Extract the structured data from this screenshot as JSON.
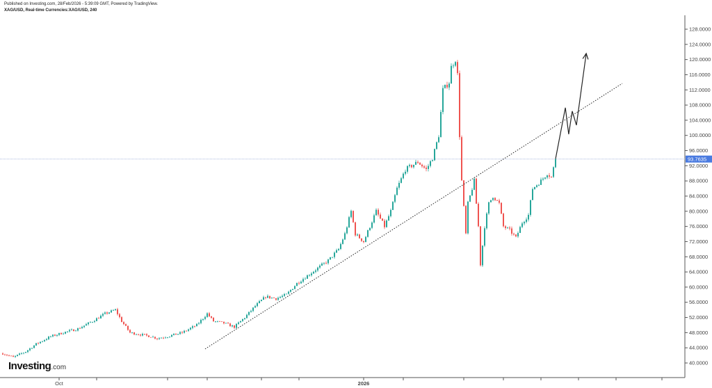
{
  "header": {
    "published": "Published on Investing.com, 28/Feb/2026 - 5:39:09 GMT, Powered by TradingView.",
    "symbol": "XAG/USD, Real-time Currencies:XAG/USD, 240"
  },
  "logo": {
    "main": "Investing",
    "suffix": ".com"
  },
  "chart_data": {
    "type": "candlestick",
    "symbol": "XAG/USD",
    "interval": "240",
    "ylim": [
      36,
      132
    ],
    "y_ticks": [
      "40.0000",
      "44.0000",
      "48.0000",
      "52.0000",
      "56.0000",
      "60.0000",
      "64.0000",
      "68.0000",
      "72.0000",
      "76.0000",
      "80.0000",
      "84.0000",
      "88.0000",
      "92.0000",
      "96.0000",
      "100.0000",
      "104.0000",
      "108.0000",
      "112.0000",
      "116.0000",
      "120.0000",
      "124.0000",
      "128.0000"
    ],
    "x_labels": [
      {
        "label": "Oct",
        "bar": 27
      },
      {
        "label": "2026",
        "bar": 173
      }
    ],
    "x_tick_bars": [
      27,
      45,
      79,
      98,
      124,
      142,
      173,
      192,
      221,
      240,
      258,
      276,
      294,
      316
    ],
    "last_price": "93.7635",
    "last_price_value": 93.7635,
    "colors": {
      "up": "#26a69a",
      "down": "#ef5350",
      "price_tag": "#4a7be0",
      "price_line": "#a9b8dd",
      "trend": "#222222"
    },
    "close_path_bar_price": [
      [
        0,
        42.5
      ],
      [
        5,
        41.5
      ],
      [
        11,
        43
      ],
      [
        16,
        45
      ],
      [
        23,
        47
      ],
      [
        29,
        48
      ],
      [
        36,
        49
      ],
      [
        43,
        51
      ],
      [
        49,
        53
      ],
      [
        54,
        54
      ],
      [
        57,
        51
      ],
      [
        61,
        48
      ],
      [
        66,
        47.5
      ],
      [
        71,
        47
      ],
      [
        74,
        46.5
      ],
      [
        79,
        47
      ],
      [
        86,
        48
      ],
      [
        93,
        50
      ],
      [
        98,
        53
      ],
      [
        101,
        51
      ],
      [
        106,
        50.5
      ],
      [
        111,
        49.5
      ],
      [
        116,
        52
      ],
      [
        121,
        55
      ],
      [
        126,
        57.5
      ],
      [
        131,
        57
      ],
      [
        136,
        58
      ],
      [
        141,
        61
      ],
      [
        146,
        63
      ],
      [
        151,
        65
      ],
      [
        156,
        67
      ],
      [
        161,
        70
      ],
      [
        164,
        74
      ],
      [
        167,
        80
      ],
      [
        169,
        74
      ],
      [
        173,
        72
      ],
      [
        176,
        76
      ],
      [
        179,
        80
      ],
      [
        183,
        76
      ],
      [
        186,
        80
      ],
      [
        189,
        86
      ],
      [
        193,
        91
      ],
      [
        196,
        92
      ],
      [
        199,
        93
      ],
      [
        203,
        91
      ],
      [
        206,
        94
      ],
      [
        209,
        100
      ],
      [
        211,
        112
      ],
      [
        214,
        114
      ],
      [
        215,
        118
      ],
      [
        217,
        120
      ],
      [
        218,
        116
      ],
      [
        219,
        100
      ],
      [
        220,
        88
      ],
      [
        222,
        74
      ],
      [
        223,
        82
      ],
      [
        226,
        88
      ],
      [
        228,
        76
      ],
      [
        229,
        66
      ],
      [
        231,
        76
      ],
      [
        233,
        82
      ],
      [
        235,
        84
      ],
      [
        238,
        82
      ],
      [
        240,
        76
      ],
      [
        243,
        75
      ],
      [
        246,
        73
      ],
      [
        249,
        77
      ],
      [
        252,
        79
      ],
      [
        254,
        86
      ],
      [
        258,
        88
      ],
      [
        261,
        90
      ],
      [
        263,
        89
      ],
      [
        265,
        93.76
      ]
    ],
    "trendline": {
      "style": "dotted",
      "from": [
        97,
        43.7
      ],
      "to": [
        297,
        113.7
      ]
    },
    "projection_arrow": [
      [
        265,
        93.8
      ],
      [
        269.7,
        107.3
      ],
      [
        271.3,
        100.3
      ],
      [
        273,
        106.4
      ],
      [
        275,
        102.7
      ],
      [
        279.7,
        121.6
      ]
    ]
  }
}
